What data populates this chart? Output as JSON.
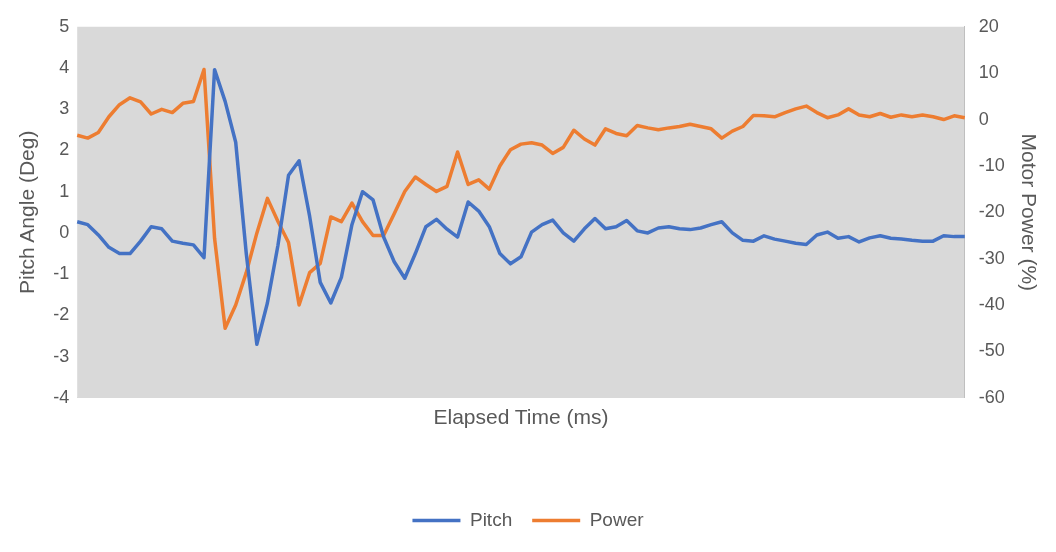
{
  "chart_data": {
    "type": "line",
    "xlabel": "Elapsed Time (ms)",
    "ylabel": "Pitch Angle (Deg)",
    "y2label": "Motor Power (%)",
    "categories": [
      null,
      null,
      null,
      null,
      null,
      null,
      null,
      null,
      null,
      null,
      null,
      null,
      null,
      null,
      null,
      null,
      null,
      null,
      null,
      null,
      null,
      null,
      null,
      null,
      null,
      null,
      null,
      null,
      null,
      null,
      null,
      null,
      null,
      null,
      null,
      null,
      null,
      null,
      null,
      null,
      null,
      null,
      null,
      null,
      null,
      null,
      null,
      null,
      null,
      null,
      null,
      null,
      null,
      null,
      null,
      null,
      null,
      null,
      null,
      null,
      null,
      null,
      null,
      null,
      null,
      null,
      null,
      null,
      null,
      null,
      null,
      null,
      null,
      null,
      null,
      null,
      null,
      null,
      null,
      null,
      null,
      null,
      null,
      null,
      null
    ],
    "series": [
      {
        "name": "Pitch",
        "color": "#4472c4",
        "values": [
          0.27,
          0.2,
          -0.05,
          -0.35,
          -0.5,
          -0.5,
          -0.2,
          0.15,
          0.1,
          -0.2,
          -0.25,
          -0.29,
          -0.6,
          3.96,
          3.19,
          2.2,
          -0.5,
          -2.7,
          -1.7,
          -0.3,
          1.4,
          1.75,
          0.4,
          -1.2,
          -1.7,
          -1.08,
          0.2,
          1.0,
          0.8,
          -0.1,
          -0.7,
          -1.1,
          -0.5,
          0.15,
          0.33,
          0.09,
          -0.1,
          0.75,
          0.53,
          0.15,
          -0.5,
          -0.75,
          -0.58,
          0.02,
          0.2,
          0.31,
          0.0,
          -0.2,
          0.1,
          0.35,
          0.1,
          0.15,
          0.3,
          0.05,
          0.0,
          0.12,
          0.15,
          0.1,
          0.08,
          0.12,
          0.2,
          0.27,
          0.0,
          -0.18,
          -0.2,
          -0.07,
          -0.15,
          -0.2,
          -0.25,
          -0.28,
          -0.05,
          0.02,
          -0.13,
          -0.09,
          -0.22,
          -0.12,
          -0.07,
          -0.13,
          -0.15,
          -0.18,
          -0.2,
          -0.2,
          -0.07,
          -0.09,
          -0.09
        ]
      },
      {
        "name": "Power",
        "color": "#ed7d31",
        "axis": "y2",
        "values": [
          -3.4,
          -4.0,
          -2.8,
          0.6,
          3.2,
          4.7,
          3.8,
          1.2,
          2.2,
          1.5,
          3.5,
          3.9,
          10.8,
          -25.6,
          -45,
          -40,
          -33,
          -24.5,
          -17,
          -22,
          -26.5,
          -40,
          -33,
          -31,
          -21,
          -22,
          -18,
          -22,
          -25,
          -25,
          -20.3,
          -15.5,
          -12.4,
          -14,
          -15.5,
          -14.4,
          -7,
          -14,
          -13,
          -15,
          -10,
          -6.5,
          -5.3,
          -5,
          -5.5,
          -7.3,
          -6,
          -2.3,
          -4.2,
          -5.5,
          -2,
          -3,
          -3.5,
          -1.3,
          -1.8,
          -2.2,
          -1.8,
          -1.5,
          -1.0,
          -1.5,
          -2.0,
          -4.0,
          -2.5,
          -1.5,
          0.9,
          0.8,
          0.6,
          1.5,
          2.3,
          2.9,
          1.5,
          0.4,
          1.0,
          2.3,
          1.0,
          0.6,
          1.3,
          0.5,
          1.0,
          0.6,
          1.0,
          0.6,
          0.0,
          0.8,
          0.4
        ]
      }
    ],
    "ylim": [
      -4,
      5
    ],
    "yticks": [
      -4,
      -3,
      -2,
      -1,
      0,
      1,
      2,
      3,
      4,
      5
    ],
    "y2lim": [
      -60,
      20
    ],
    "y2ticks": [
      -60,
      -50,
      -40,
      -30,
      -20,
      -10,
      0,
      10,
      20
    ],
    "tick_labels": "y",
    "legend": "bottom",
    "grid": false
  }
}
